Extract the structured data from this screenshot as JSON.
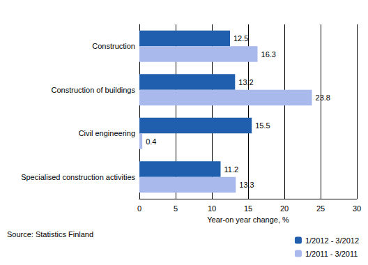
{
  "chart_data": {
    "type": "bar",
    "orientation": "horizontal",
    "categories": [
      "Construction",
      "Construction of buildings",
      "Civil engineering",
      "Specialised construction activities"
    ],
    "series": [
      {
        "name": "1/2012 - 3/2012",
        "color": "#1f5fad",
        "values": [
          12.5,
          13.2,
          15.5,
          11.2
        ]
      },
      {
        "name": "1/2011 - 3/2011",
        "color": "#a9b9ec",
        "values": [
          16.3,
          23.8,
          0.4,
          13.3
        ]
      }
    ],
    "x_label": "Year-on year change, %",
    "xlim": [
      0,
      30
    ],
    "xticks": [
      0,
      5,
      10,
      15,
      20,
      25,
      30
    ],
    "grid": true,
    "data_labels": true,
    "legend": "bottom right",
    "annotations": [
      "Source: Statistics Finland"
    ]
  }
}
